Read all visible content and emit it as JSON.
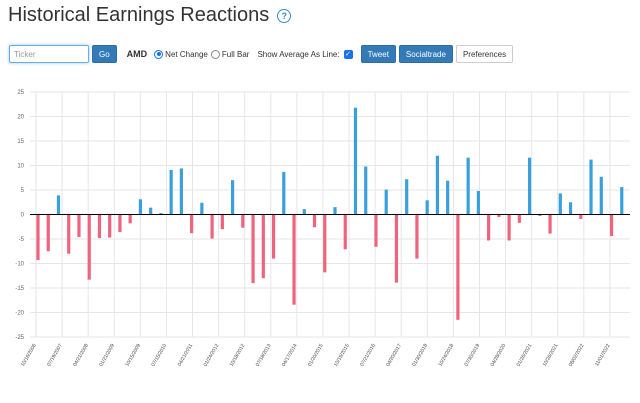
{
  "header": {
    "title": "Historical Earnings Reactions",
    "help_icon": "?"
  },
  "controls": {
    "ticker_placeholder": "Ticker",
    "go_label": "Go",
    "symbol": "AMD",
    "radio_net_change": "Net Change",
    "radio_full_bar": "Full Bar",
    "avg_line_label": "Show Average As Line:",
    "tweet_label": "Tweet",
    "socialtrade_label": "Socialtrade",
    "preferences_label": "Preferences"
  },
  "colors": {
    "positive": "#3aa0dd",
    "negative": "#f0637f",
    "zero_line": "#000000",
    "grid": "#e6e6e6"
  },
  "chart_data": {
    "type": "bar",
    "title": "",
    "xlabel": "",
    "ylabel": "",
    "ylim": [
      -25,
      25
    ],
    "yticks": [
      25,
      20,
      15,
      10,
      5,
      0,
      -5,
      -10,
      -15,
      -20,
      -25
    ],
    "x_tick_labels": [
      "10/16/2006",
      "07/19/2007",
      "04/21/2008",
      "01/21/2009",
      "10/15/2009",
      "07/15/2010",
      "04/21/2011",
      "01/24/2012",
      "10/18/2012",
      "07/18/2013",
      "04/17/2014",
      "01/20/2015",
      "10/15/2015",
      "07/21/2016",
      "04/20/2017",
      "01/30/2018",
      "10/24/2018",
      "07/30/2019",
      "04/28/2020",
      "01/26/2021",
      "10/26/2021",
      "08/02/2022",
      "11/01/2022"
    ],
    "values": [
      -9.3,
      -7.5,
      3.9,
      -8.0,
      -4.6,
      -13.3,
      -4.8,
      -4.7,
      -3.6,
      -1.8,
      3.1,
      1.4,
      0.3,
      9.1,
      9.4,
      -3.8,
      2.4,
      -4.9,
      -3.0,
      7.0,
      -2.7,
      -14.0,
      -13.0,
      -9.0,
      8.7,
      -18.4,
      1.1,
      -2.6,
      -11.8,
      1.5,
      -7.1,
      21.8,
      9.8,
      -6.6,
      5.1,
      -13.9,
      7.2,
      -9.0,
      2.9,
      12.0,
      6.9,
      -21.5,
      11.6,
      4.8,
      -5.3,
      -0.5,
      -5.3,
      -1.7,
      11.6,
      -0.3,
      -3.9,
      4.3,
      2.5,
      -0.9,
      11.2,
      7.7,
      -4.4,
      5.6
    ]
  }
}
